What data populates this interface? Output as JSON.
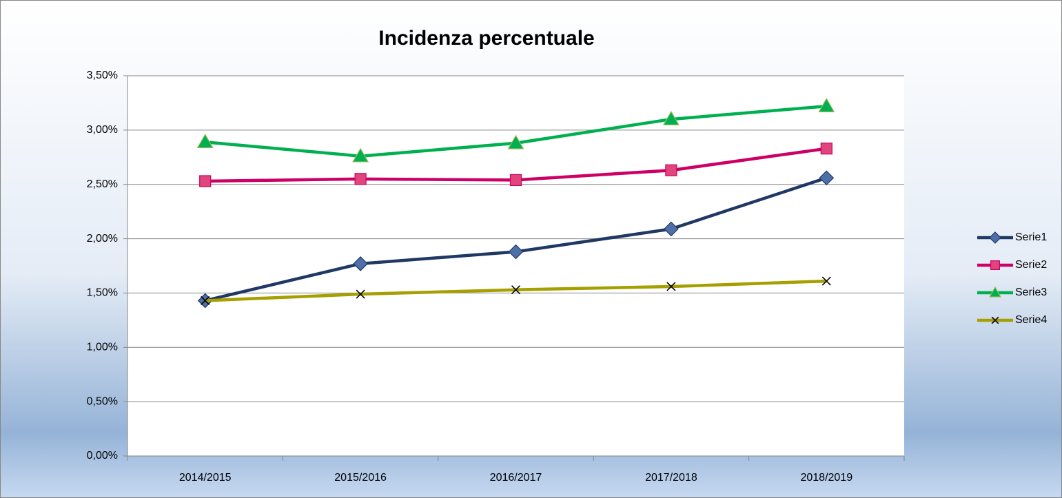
{
  "chart_data": {
    "type": "line",
    "title": "Incidenza percentuale",
    "categories": [
      "2014/2015",
      "2015/2016",
      "2016/2017",
      "2017/2018",
      "2018/2019"
    ],
    "series": [
      {
        "name": "Serie1",
        "color": "#1f3864",
        "marker": "diamond",
        "marker_color": "#4f6fa8",
        "values": [
          1.43,
          1.77,
          1.88,
          2.09,
          2.56
        ]
      },
      {
        "name": "Serie2",
        "color": "#cc0066",
        "marker": "square",
        "marker_color": "#e0457b",
        "values": [
          2.53,
          2.55,
          2.54,
          2.63,
          2.83
        ]
      },
      {
        "name": "Serie3",
        "color": "#00b050",
        "marker": "triangle",
        "marker_color": "#00b050",
        "values": [
          2.89,
          2.76,
          2.88,
          3.1,
          3.22
        ]
      },
      {
        "name": "Serie4",
        "color": "#a5a000",
        "marker": "x",
        "marker_color": "#000000",
        "values": [
          1.43,
          1.49,
          1.53,
          1.56,
          1.61
        ]
      }
    ],
    "ylim": [
      0,
      3.5
    ],
    "yticks": [
      {
        "value": 0,
        "label": "0,00%"
      },
      {
        "value": 0.5,
        "label": "0,50%"
      },
      {
        "value": 1,
        "label": "1,00%"
      },
      {
        "value": 1.5,
        "label": "1,50%"
      },
      {
        "value": 2,
        "label": "2,00%"
      },
      {
        "value": 2.5,
        "label": "2,50%"
      },
      {
        "value": 3,
        "label": "3,00%"
      },
      {
        "value": 3.5,
        "label": "3,50%"
      }
    ],
    "grid": true,
    "legend": "right"
  }
}
